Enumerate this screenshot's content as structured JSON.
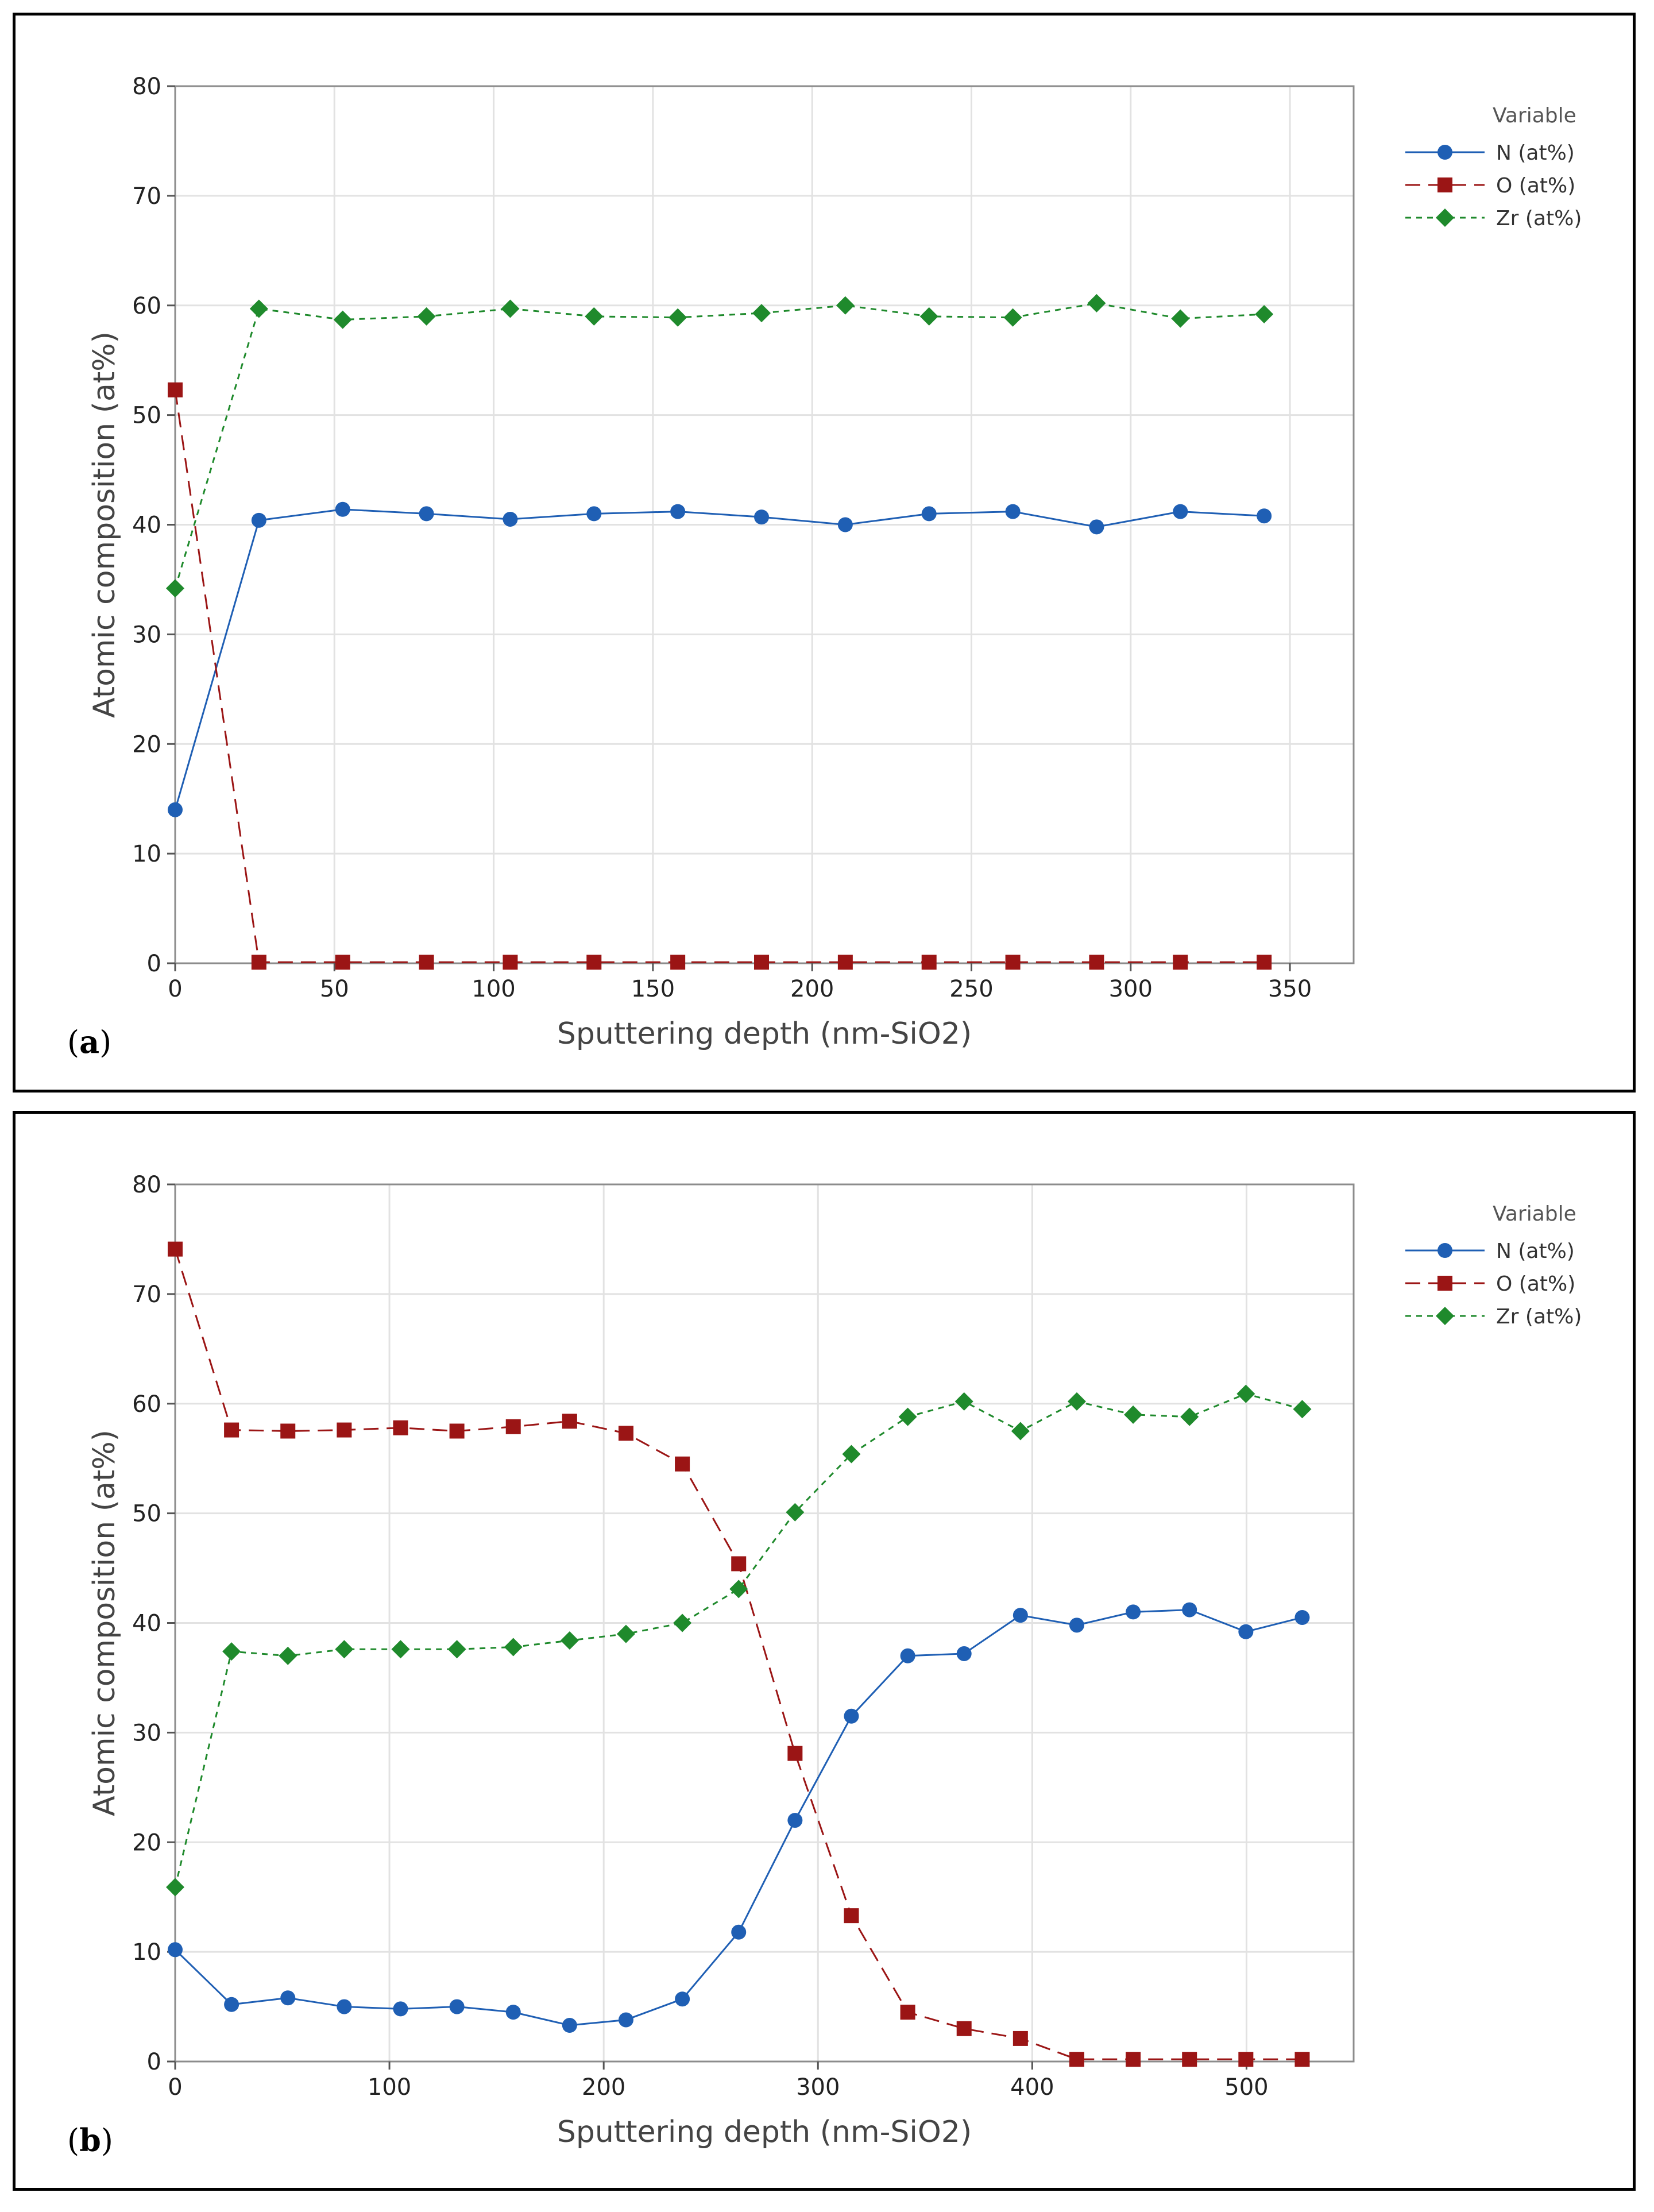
{
  "colors": {
    "N": "#1f5fb4",
    "O": "#9b1515",
    "Zr": "#1f8a2c"
  },
  "chart_data": [
    {
      "type": "line",
      "panel_label": "a",
      "xlabel": "Sputtering depth (nm-SiO2)",
      "ylabel": "Atomic composition (at%)",
      "xlim": [
        0,
        370
      ],
      "ylim": [
        0,
        80
      ],
      "xticks": [
        0,
        50,
        100,
        150,
        200,
        250,
        300,
        350
      ],
      "yticks": [
        0,
        10,
        20,
        30,
        40,
        50,
        60,
        70,
        80
      ],
      "legend_title": "Variable",
      "x": [
        0,
        26.3,
        52.6,
        78.9,
        105.2,
        131.5,
        157.8,
        184.1,
        210.4,
        236.7,
        263.0,
        289.3,
        315.6,
        341.9
      ],
      "series": [
        {
          "name": "N (at%)",
          "key": "N",
          "marker": "circle",
          "dash": "solid",
          "values": [
            14.0,
            40.4,
            41.4,
            41.0,
            40.5,
            41.0,
            41.2,
            40.7,
            40.0,
            41.0,
            41.2,
            39.8,
            41.2,
            40.8
          ]
        },
        {
          "name": "O (at%)",
          "key": "O",
          "marker": "square",
          "dash": "dashed",
          "values": [
            52.3,
            0.1,
            0.1,
            0.1,
            0.1,
            0.1,
            0.1,
            0.1,
            0.1,
            0.1,
            0.1,
            0.1,
            0.1,
            0.1
          ]
        },
        {
          "name": "Zr (at%)",
          "key": "Zr",
          "marker": "diamond",
          "dash": "dotted",
          "values": [
            34.2,
            59.7,
            58.7,
            59.0,
            59.7,
            59.0,
            58.9,
            59.3,
            60.0,
            59.0,
            58.9,
            60.2,
            58.8,
            59.2
          ]
        }
      ]
    },
    {
      "type": "line",
      "panel_label": "b",
      "xlabel": "Sputtering depth (nm-SiO2)",
      "ylabel": "Atomic composition (at%)",
      "xlim": [
        0,
        550
      ],
      "ylim": [
        0,
        80
      ],
      "xticks": [
        0,
        100,
        200,
        300,
        400,
        500
      ],
      "yticks": [
        0,
        10,
        20,
        30,
        40,
        50,
        60,
        70,
        80
      ],
      "legend_title": "Variable",
      "x": [
        0,
        26.3,
        52.6,
        78.9,
        105.2,
        131.5,
        157.8,
        184.1,
        210.4,
        236.7,
        263.0,
        289.3,
        315.6,
        341.9,
        368.2,
        394.5,
        420.8,
        447.1,
        473.4,
        499.7,
        526.0
      ],
      "series": [
        {
          "name": "N (at%)",
          "key": "N",
          "marker": "circle",
          "dash": "solid",
          "values": [
            10.2,
            5.2,
            5.8,
            5.0,
            4.8,
            5.0,
            4.5,
            3.3,
            3.8,
            5.7,
            11.8,
            22.0,
            31.5,
            37.0,
            37.2,
            40.7,
            39.8,
            41.0,
            41.2,
            39.2,
            40.5
          ]
        },
        {
          "name": "O (at%)",
          "key": "O",
          "marker": "square",
          "dash": "dashed",
          "values": [
            74.1,
            57.6,
            57.5,
            57.6,
            57.8,
            57.5,
            57.9,
            58.4,
            57.3,
            54.5,
            45.4,
            28.1,
            13.3,
            4.5,
            3.0,
            2.1,
            0.2,
            0.2,
            0.2,
            0.2,
            0.2
          ]
        },
        {
          "name": "Zr (at%)",
          "key": "Zr",
          "marker": "diamond",
          "dash": "dotted",
          "values": [
            15.9,
            37.4,
            37.0,
            37.6,
            37.6,
            37.6,
            37.8,
            38.4,
            39.0,
            40.0,
            43.1,
            50.1,
            55.4,
            58.8,
            60.2,
            57.5,
            60.2,
            59.0,
            58.8,
            60.9,
            59.5
          ]
        }
      ]
    }
  ]
}
